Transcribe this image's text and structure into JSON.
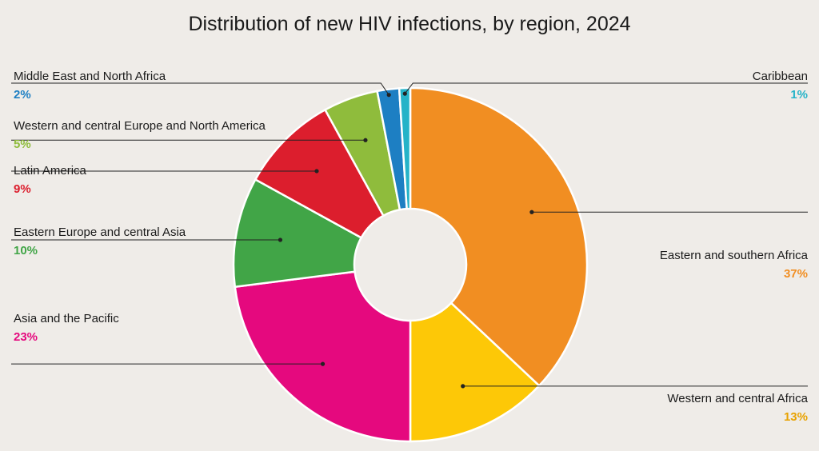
{
  "chart_data": {
    "type": "pie",
    "donut": true,
    "title": "Distribution of new HIV infections, by region, 2024",
    "slices": [
      {
        "label": "Eastern and southern Africa",
        "value": 37,
        "pct_text": "37%",
        "color": "#f18e22",
        "label_color": "#f18e22"
      },
      {
        "label": "Western and central Africa",
        "value": 13,
        "pct_text": "13%",
        "color": "#fdc807",
        "label_color": "#e8a200"
      },
      {
        "label": "Asia and the Pacific",
        "value": 23,
        "pct_text": "23%",
        "color": "#e5097e",
        "label_color": "#e5097e"
      },
      {
        "label": "Eastern Europe and central Asia",
        "value": 10,
        "pct_text": "10%",
        "color": "#41a547",
        "label_color": "#41a547"
      },
      {
        "label": "Latin America",
        "value": 9,
        "pct_text": "9%",
        "color": "#dc1e2d",
        "label_color": "#dc1e2d"
      },
      {
        "label": "Western and central Europe and North America",
        "value": 5,
        "pct_text": "5%",
        "color": "#8fbc3c",
        "label_color": "#8fbc3c"
      },
      {
        "label": "Middle East and North Africa",
        "value": 2,
        "pct_text": "2%",
        "color": "#1d7fc3",
        "label_color": "#1d7fc3"
      },
      {
        "label": "Caribbean",
        "value": 1,
        "pct_text": "1%",
        "color": "#25b3c8",
        "label_color": "#25b3c8"
      }
    ]
  }
}
